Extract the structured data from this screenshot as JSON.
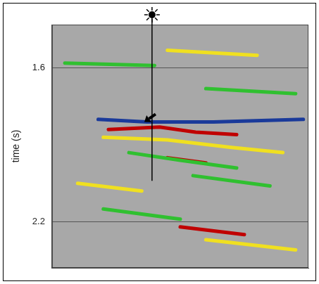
{
  "chart_data": {
    "type": "line",
    "y_label": "time (s)",
    "xlim": [
      0,
      100
    ],
    "ylim": [
      2.38,
      1.43
    ],
    "yticks": [
      1.6,
      2.2
    ],
    "grid": true,
    "tick_labels": "y",
    "series": [
      {
        "color": "#1a3a9a",
        "x": [
          18,
          37,
          63,
          98
        ],
        "values": [
          1.8,
          1.81,
          1.81,
          1.8
        ]
      },
      {
        "color": "#c00000",
        "x": [
          22,
          42,
          56,
          72
        ],
        "values": [
          1.84,
          1.83,
          1.85,
          1.86
        ]
      },
      {
        "color": "#f0e020",
        "x": [
          20,
          45,
          70,
          90
        ],
        "values": [
          1.87,
          1.88,
          1.91,
          1.93
        ]
      },
      {
        "color": "#30c030",
        "x": [
          30,
          50,
          72
        ],
        "values": [
          1.93,
          1.96,
          1.99
        ]
      },
      {
        "color": "#c00000",
        "x": [
          45,
          60
        ],
        "values": [
          1.95,
          1.97
        ]
      },
      {
        "color": "#f0e020",
        "x": [
          10,
          35
        ],
        "values": [
          2.05,
          2.08
        ]
      },
      {
        "color": "#30c030",
        "x": [
          55,
          85
        ],
        "values": [
          2.02,
          2.06
        ]
      },
      {
        "color": "#c00000",
        "x": [
          50,
          75
        ],
        "values": [
          2.22,
          2.25
        ]
      },
      {
        "color": "#30c030",
        "x": [
          20,
          50
        ],
        "values": [
          2.15,
          2.19
        ]
      },
      {
        "color": "#f0e020",
        "x": [
          60,
          95
        ],
        "values": [
          2.27,
          2.31
        ]
      },
      {
        "color": "#30c030",
        "x": [
          5,
          40
        ],
        "values": [
          1.58,
          1.59
        ]
      },
      {
        "color": "#f0e020",
        "x": [
          45,
          80
        ],
        "values": [
          1.53,
          1.55
        ]
      },
      {
        "color": "#30c030",
        "x": [
          60,
          95
        ],
        "values": [
          1.68,
          1.7
        ]
      }
    ],
    "well": {
      "x": 39,
      "bottom": 2.04
    },
    "arrow": {
      "x": 36,
      "y": 1.81
    }
  }
}
